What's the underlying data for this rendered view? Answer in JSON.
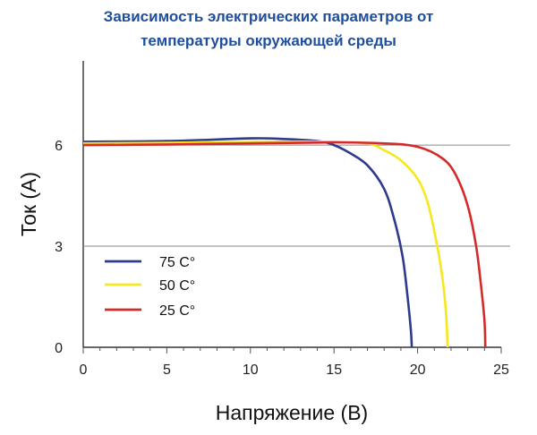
{
  "chart_data": {
    "type": "line",
    "title_lines": [
      "Зависимость электрических параметров от",
      "температуры окружающей среды"
    ],
    "xlabel": "Напряжение (В)",
    "ylabel": "Ток (А)",
    "xlim": [
      0,
      25
    ],
    "ylim": [
      0,
      8.5
    ],
    "xticks": [
      0,
      5,
      10,
      15,
      20,
      25
    ],
    "yticks": [
      0,
      3,
      6
    ],
    "gridlines_y": [
      3,
      6
    ],
    "legend_position": "lower-left",
    "series": [
      {
        "name": "75 C°",
        "color": "#2e3a8c",
        "points": [
          [
            0,
            6.1
          ],
          [
            5,
            6.12
          ],
          [
            10,
            6.2
          ],
          [
            12,
            6.18
          ],
          [
            14,
            6.12
          ],
          [
            15,
            6.0
          ],
          [
            16,
            5.75
          ],
          [
            17,
            5.4
          ],
          [
            18,
            4.7
          ],
          [
            18.6,
            3.8
          ],
          [
            19.1,
            2.7
          ],
          [
            19.4,
            1.5
          ],
          [
            19.6,
            0.5
          ],
          [
            19.65,
            0
          ]
        ]
      },
      {
        "name": "50 C°",
        "color": "#f5e81e",
        "points": [
          [
            0,
            6.05
          ],
          [
            5,
            6.07
          ],
          [
            10,
            6.1
          ],
          [
            15,
            6.1
          ],
          [
            17,
            6.05
          ],
          [
            18,
            5.85
          ],
          [
            19,
            5.55
          ],
          [
            20,
            5.0
          ],
          [
            20.6,
            4.3
          ],
          [
            21.1,
            3.2
          ],
          [
            21.5,
            2.0
          ],
          [
            21.7,
            1.0
          ],
          [
            21.8,
            0
          ]
        ]
      },
      {
        "name": "25 C°",
        "color": "#d42a2a",
        "points": [
          [
            0,
            6.0
          ],
          [
            5,
            6.02
          ],
          [
            10,
            6.05
          ],
          [
            15,
            6.08
          ],
          [
            18,
            6.05
          ],
          [
            20,
            5.95
          ],
          [
            21.5,
            5.6
          ],
          [
            22.3,
            5.1
          ],
          [
            23,
            4.2
          ],
          [
            23.5,
            3.0
          ],
          [
            23.8,
            1.8
          ],
          [
            24.0,
            0.8
          ],
          [
            24.05,
            0
          ]
        ]
      }
    ]
  }
}
